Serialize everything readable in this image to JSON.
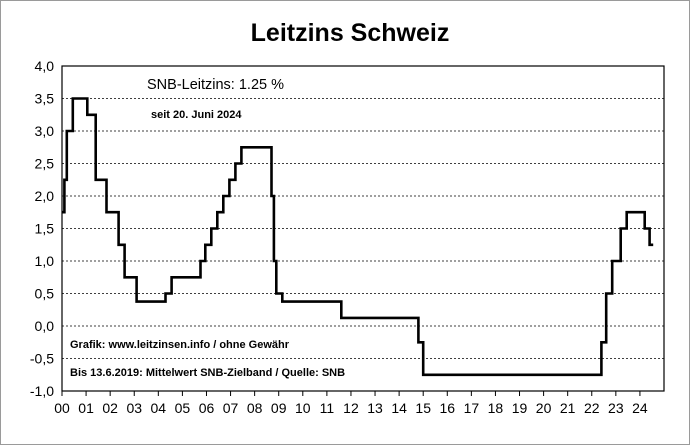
{
  "chart_data": {
    "type": "line",
    "step": true,
    "title": "Leitzins Schweiz",
    "xlabel": "",
    "ylabel": "",
    "xlim": [
      2000,
      2025
    ],
    "ylim": [
      -1.0,
      4.0
    ],
    "grid": true,
    "x_tick_labels": [
      "00",
      "01",
      "02",
      "03",
      "04",
      "05",
      "06",
      "07",
      "08",
      "09",
      "10",
      "11",
      "12",
      "13",
      "14",
      "15",
      "16",
      "17",
      "18",
      "19",
      "20",
      "21",
      "22",
      "23",
      "24"
    ],
    "y_tick_labels": [
      "4,0",
      "3,5",
      "3,0",
      "2,5",
      "2,0",
      "1,5",
      "1,0",
      "0,5",
      "0,0",
      "-0,5",
      "-1,0"
    ],
    "y_tick_values": [
      4.0,
      3.5,
      3.0,
      2.5,
      2.0,
      1.5,
      1.0,
      0.5,
      0.0,
      -0.5,
      -1.0
    ],
    "annotations": {
      "current_rate": "SNB-Leitzins: 1.25 %",
      "since": "seit 20. Juni 2024",
      "credit": "Grafik: www.leitzinsen.info / ohne Gewähr",
      "source": "Bis 13.6.2019: Mittelwert SNB-Zielband / Quelle: SNB"
    },
    "series": [
      {
        "x": [
          2000.0,
          2000.1,
          2000.2,
          2000.45,
          2001.05,
          2001.4,
          2001.85,
          2002.0,
          2002.35,
          2002.6,
          2003.1,
          2004.3,
          2004.55,
          2005.75,
          2005.95,
          2006.2,
          2006.45,
          2006.7,
          2006.95,
          2007.2,
          2007.45,
          2007.7,
          2008.7,
          2008.8,
          2008.9,
          2009.0,
          2009.15,
          2011.6,
          2014.8,
          2015.0,
          2022.4,
          2022.6,
          2022.85,
          2023.2,
          2023.45,
          2024.2,
          2024.4,
          2024.55
        ],
        "values": [
          1.75,
          2.25,
          3.0,
          3.5,
          3.25,
          2.25,
          1.75,
          1.75,
          1.25,
          0.75,
          0.375,
          0.5,
          0.75,
          1.0,
          1.25,
          1.5,
          1.75,
          2.0,
          2.25,
          2.5,
          2.75,
          2.75,
          2.0,
          1.0,
          0.5,
          0.5,
          0.375,
          0.125,
          -0.25,
          -0.75,
          -0.25,
          0.5,
          1.0,
          1.5,
          1.75,
          1.5,
          1.25,
          1.25
        ]
      }
    ]
  }
}
